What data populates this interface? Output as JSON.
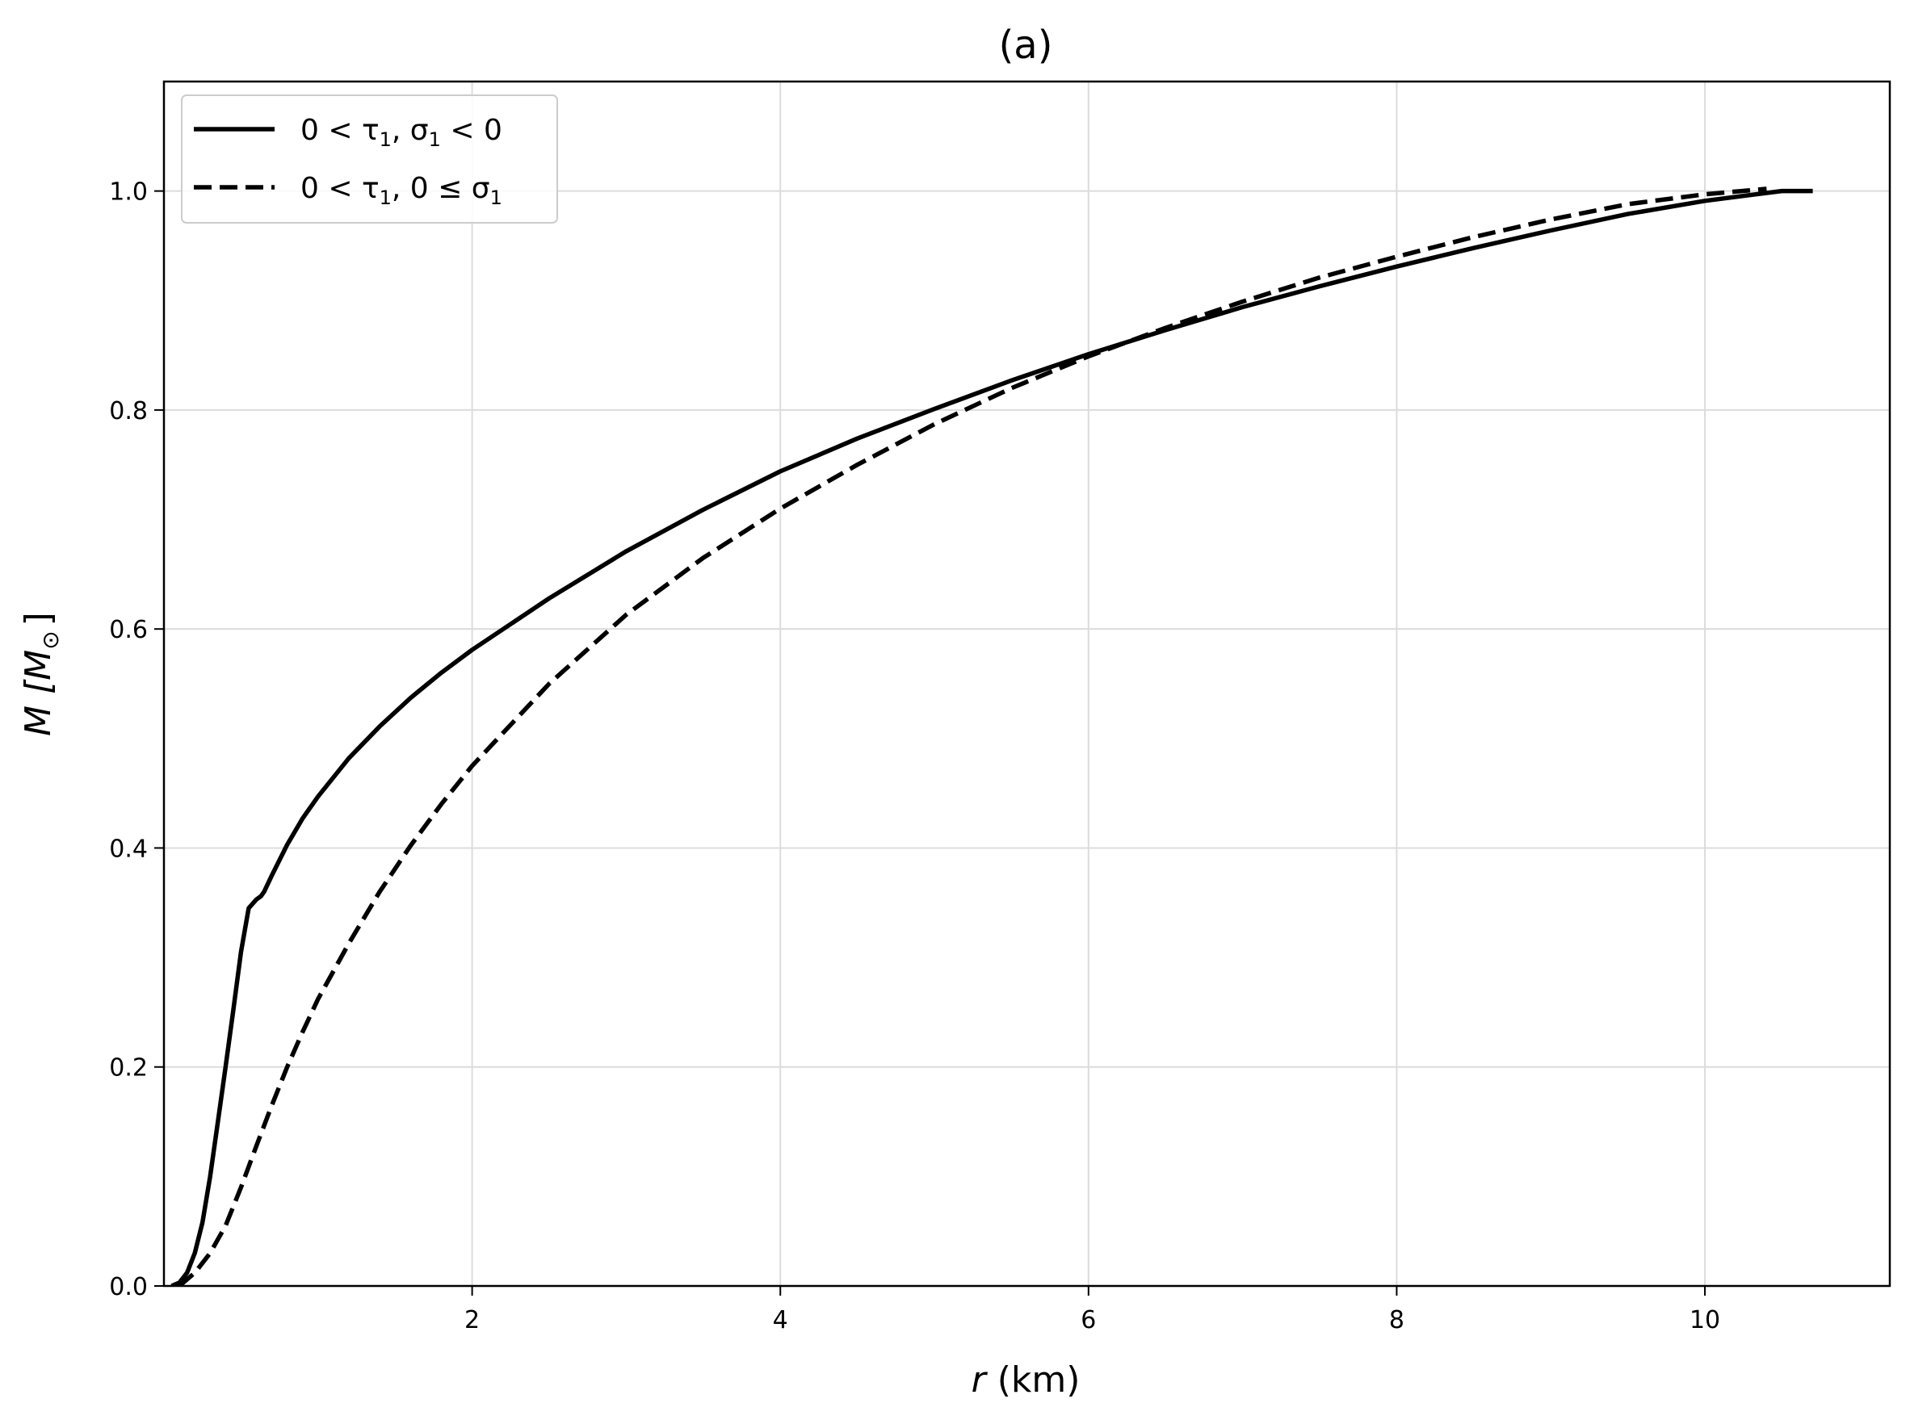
{
  "chart_data": {
    "type": "line",
    "title": "(a)",
    "xlabel_var": "r",
    "xlabel_unit": " (km)",
    "ylabel_prefix": "M [M",
    "ylabel_sub": "⊙",
    "ylabel_suffix": "]",
    "xlim": [
      0,
      11.2
    ],
    "ylim": [
      0.0,
      1.1
    ],
    "xticks": [
      2,
      4,
      6,
      8,
      10
    ],
    "yticks": [
      0.0,
      0.2,
      0.4,
      0.6,
      0.8,
      1.0
    ],
    "xtick_labels": [
      "2",
      "4",
      "6",
      "8",
      "10"
    ],
    "ytick_labels": [
      "0.0",
      "0.2",
      "0.4",
      "0.6",
      "0.8",
      "1.0"
    ],
    "grid": true,
    "legend_position": "top-left",
    "series": [
      {
        "name": "0 < τ1, σ1 < 0",
        "legend_parts": [
          "0 < τ",
          "1",
          ", σ",
          "1",
          " < 0"
        ],
        "style": "solid",
        "color": "#000000",
        "x": [
          0.05,
          0.1,
          0.15,
          0.2,
          0.25,
          0.3,
          0.35,
          0.4,
          0.45,
          0.5,
          0.55,
          0.6,
          0.63,
          0.65,
          0.7,
          0.8,
          0.9,
          1.0,
          1.2,
          1.4,
          1.6,
          1.8,
          2.0,
          2.5,
          3.0,
          3.5,
          4.0,
          4.5,
          5.0,
          5.5,
          6.0,
          6.5,
          7.0,
          7.5,
          8.0,
          8.5,
          9.0,
          9.5,
          10.0,
          10.5,
          10.7
        ],
        "y": [
          0.0,
          0.003,
          0.012,
          0.03,
          0.058,
          0.1,
          0.15,
          0.2,
          0.252,
          0.305,
          0.345,
          0.353,
          0.356,
          0.36,
          0.375,
          0.403,
          0.427,
          0.447,
          0.482,
          0.511,
          0.537,
          0.56,
          0.581,
          0.628,
          0.671,
          0.709,
          0.744,
          0.774,
          0.801,
          0.827,
          0.851,
          0.873,
          0.894,
          0.913,
          0.931,
          0.948,
          0.964,
          0.979,
          0.991,
          1.0,
          1.0
        ]
      },
      {
        "name": "0 < τ1, 0 ≤ σ1",
        "legend_parts": [
          "0 < τ",
          "1",
          ", 0 ≤ σ",
          "1",
          ""
        ],
        "style": "dashed",
        "color": "#000000",
        "x": [
          0.1,
          0.2,
          0.3,
          0.4,
          0.5,
          0.6,
          0.7,
          0.8,
          0.9,
          1.0,
          1.2,
          1.4,
          1.6,
          1.8,
          2.0,
          2.5,
          3.0,
          3.5,
          4.0,
          4.5,
          5.0,
          5.5,
          6.0,
          6.5,
          7.0,
          7.5,
          8.0,
          8.5,
          9.0,
          9.5,
          10.0,
          10.4
        ],
        "y": [
          0.0,
          0.012,
          0.03,
          0.055,
          0.09,
          0.128,
          0.165,
          0.2,
          0.232,
          0.262,
          0.313,
          0.36,
          0.402,
          0.44,
          0.475,
          0.55,
          0.613,
          0.665,
          0.71,
          0.75,
          0.787,
          0.82,
          0.849,
          0.875,
          0.899,
          0.921,
          0.94,
          0.958,
          0.974,
          0.988,
          0.997,
          1.002
        ]
      }
    ]
  }
}
